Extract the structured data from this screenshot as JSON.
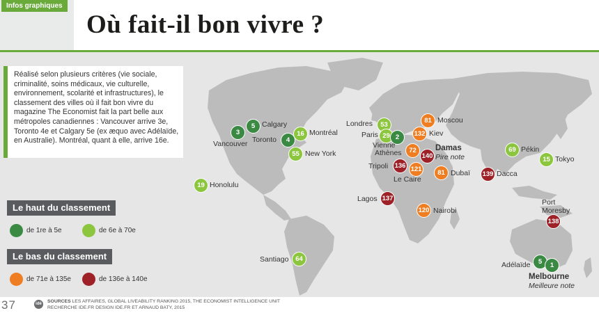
{
  "header": {
    "tag": "Infos graphiques",
    "title": "Où fait-il bon vivre ?"
  },
  "intro": {
    "text": "Réalisé selon plusieurs critères (vie sociale, criminalité, soins médicaux, vie culturelle, environnement, scolarité et infrastructures), le classement des villes où il fait bon vivre du magazine The Economist fait la part belle aux métropoles canadiennes : Vancouver arrive 3e, Toronto 4e et Calgary 5e (ex æquo avec Adélaïde, en Australie). Montréal, quant à elle, arrive 16e."
  },
  "legend": {
    "top_title": "Le haut du classement",
    "top_items": [
      "de 1re à 5e",
      "de 6e à 70e"
    ],
    "bottom_title": "Le bas du classement",
    "bottom_items": [
      "de 71e à 135e",
      "de 136e à 140e"
    ]
  },
  "colors": {
    "top_1_5": "#3b8a44",
    "top_6_70": "#8cc63e",
    "bottom_71_135": "#ef7d22",
    "bottom_136_140": "#9e2128",
    "accent": "#6aaa3a"
  },
  "cities": [
    {
      "name": "Vancouver",
      "rank": "3"
    },
    {
      "name": "Calgary",
      "rank": "5"
    },
    {
      "name": "Toronto",
      "rank": "4"
    },
    {
      "name": "Montréal",
      "rank": "16"
    },
    {
      "name": "New York",
      "rank": "55"
    },
    {
      "name": "Honolulu",
      "rank": "19"
    },
    {
      "name": "Santiago",
      "rank": "64"
    },
    {
      "name": "Londres",
      "rank": "53"
    },
    {
      "name": "Paris",
      "rank": "29"
    },
    {
      "name": "Vienne",
      "rank": "2"
    },
    {
      "name": "Athènes",
      "rank": "72"
    },
    {
      "name": "Moscou",
      "rank": "81"
    },
    {
      "name": "Kiev",
      "rank": "132"
    },
    {
      "name": "Damas",
      "rank": "140",
      "note": "Pire note"
    },
    {
      "name": "Tripoli",
      "rank": "136"
    },
    {
      "name": "Le Caire",
      "rank": "121"
    },
    {
      "name": "Dubaï",
      "rank": "81"
    },
    {
      "name": "Lagos",
      "rank": "137"
    },
    {
      "name": "Nairobi",
      "rank": "120"
    },
    {
      "name": "Dacca",
      "rank": "139"
    },
    {
      "name": "Pékin",
      "rank": "69"
    },
    {
      "name": "Tokyo",
      "rank": "15"
    },
    {
      "name": "Port Moresby",
      "rank": "138"
    },
    {
      "name": "Adélaïde",
      "rank": "5"
    },
    {
      "name": "Melbourne",
      "rank": "1",
      "note": "Meilleure note"
    }
  ],
  "footer": {
    "page_number": "37",
    "sources_label": "SOURCES",
    "sources_text": "LES AFFAIRES, GLOBAL LIVEABILITY RANKING 2015, THE ECONOMIST INTELLIGENCE UNIT",
    "credits_text": "RECHERCHE IDE.FR DESIGN IDE.FR ET ARNAUD BATY, 2015",
    "logo": "idé"
  }
}
